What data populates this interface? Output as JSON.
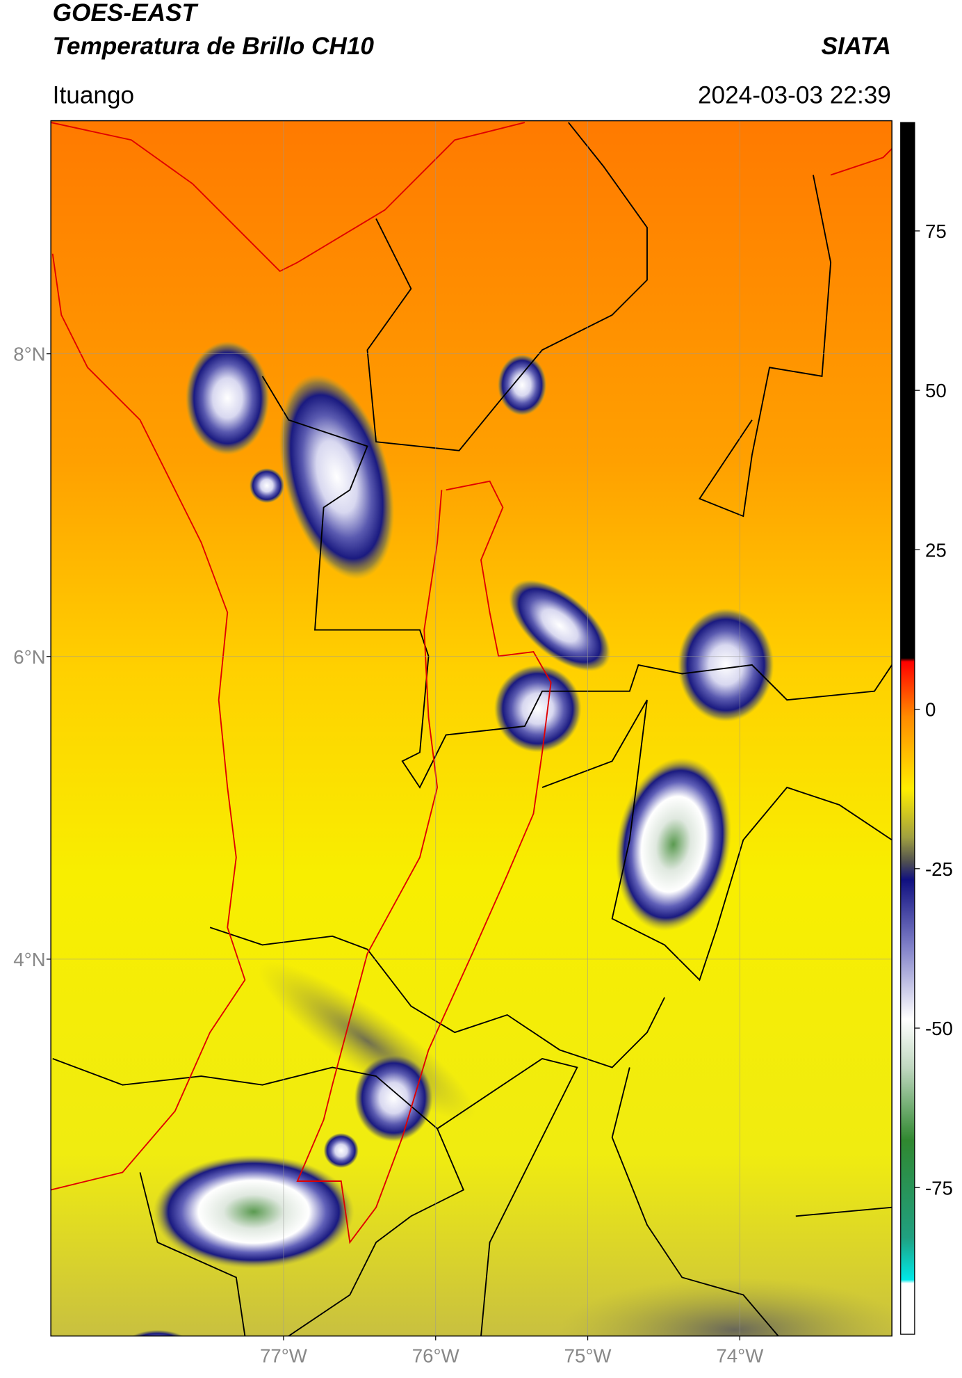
{
  "header": {
    "title": "GOES-EAST",
    "subtitle": "Temperatura de Brillo CH10",
    "source": "SIATA",
    "region": "Ituango",
    "timestamp": "2024-03-03 22:39"
  },
  "map": {
    "xlim": [
      -78.53,
      -73.0
    ],
    "ylim": [
      1.51,
      9.54
    ],
    "xticks": [
      {
        "value": -77,
        "label": "77°W"
      },
      {
        "value": -76,
        "label": "76°W"
      },
      {
        "value": -75,
        "label": "75°W"
      },
      {
        "value": -74,
        "label": "74°W"
      }
    ],
    "yticks": [
      {
        "value": 4,
        "label": "4°N"
      },
      {
        "value": 6,
        "label": "6°N"
      },
      {
        "value": 8,
        "label": "8°N"
      }
    ],
    "grid": true
  },
  "colorbar": {
    "lim": [
      -98,
      92
    ],
    "ticks": [
      -75,
      -50,
      -25,
      0,
      25,
      50,
      75
    ]
  }
}
